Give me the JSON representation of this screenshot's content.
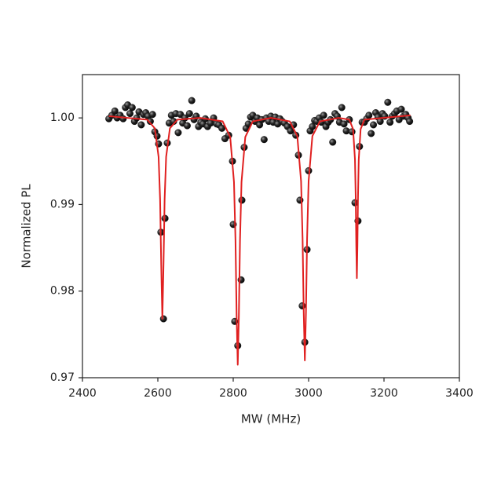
{
  "chart_data": {
    "type": "scatter",
    "x_label": "MW (MHz)",
    "y_label": "Normalized PL",
    "xlim": [
      2400,
      3400
    ],
    "xticks": [
      2400,
      2600,
      2800,
      3000,
      3200,
      3400
    ],
    "ylim": [
      0.97,
      1.005
    ],
    "yticks": [
      0.97,
      0.98,
      0.99,
      {
        "value": 1,
        "label": "1.00"
      }
    ],
    "series": [
      {
        "type": "scatter",
        "color": "#1a1a1a",
        "x": [
          2470,
          2478,
          2486,
          2492,
          2500,
          2508,
          2514,
          2520,
          2526,
          2532,
          2538,
          2544,
          2550,
          2556,
          2562,
          2568,
          2574,
          2580,
          2586,
          2592,
          2598,
          2602,
          2608,
          2615,
          2619,
          2625,
          2630,
          2636,
          2642,
          2648,
          2654,
          2660,
          2666,
          2672,
          2678,
          2684,
          2690,
          2696,
          2702,
          2708,
          2714,
          2720,
          2726,
          2732,
          2740,
          2748,
          2756,
          2762,
          2770,
          2778,
          2788,
          2798,
          2800,
          2804,
          2812,
          2821,
          2823,
          2829,
          2834,
          2840,
          2846,
          2852,
          2858,
          2864,
          2870,
          2876,
          2882,
          2888,
          2894,
          2900,
          2906,
          2912,
          2918,
          2924,
          2930,
          2936,
          2944,
          2952,
          2960,
          2966,
          2973,
          2977,
          2983,
          2990,
          2996,
          3000,
          3004,
          3010,
          3016,
          3022,
          3028,
          3034,
          3040,
          3046,
          3052,
          3058,
          3064,
          3070,
          3076,
          3082,
          3088,
          3094,
          3100,
          3108,
          3115,
          3123,
          3131,
          3135,
          3142,
          3148,
          3154,
          3160,
          3166,
          3172,
          3178,
          3184,
          3190,
          3196,
          3202,
          3210,
          3216,
          3222,
          3228,
          3234,
          3240,
          3246,
          3252,
          3258,
          3264,
          3268
        ],
        "values": [
          0.9999,
          1.0003,
          1.0008,
          1.0,
          1.0003,
          0.9999,
          1.0012,
          1.0015,
          1.0005,
          1.0012,
          0.9996,
          1.0,
          1.0007,
          0.9992,
          1.0004,
          1.0006,
          1.0002,
          0.9996,
          1.0004,
          0.9984,
          0.9979,
          0.997,
          0.9868,
          0.9768,
          0.9884,
          0.9971,
          0.9994,
          1.0003,
          0.9996,
          1.0005,
          0.9983,
          1.0004,
          0.9994,
          1.0,
          0.9991,
          1.0005,
          1.002,
          0.9998,
          1.0002,
          0.999,
          0.9995,
          0.9993,
          0.9999,
          0.999,
          0.9994,
          1.0,
          0.9993,
          0.9992,
          0.9988,
          0.9976,
          0.998,
          0.995,
          0.9877,
          0.9765,
          0.9737,
          0.9813,
          0.9905,
          0.9966,
          0.9988,
          0.9993,
          1.0001,
          1.0003,
          0.9996,
          1.0,
          0.9992,
          0.9998,
          0.9975,
          1.0,
          0.9996,
          1.0002,
          0.9995,
          1.0001,
          0.9993,
          0.9999,
          0.9996,
          0.9994,
          0.999,
          0.9985,
          0.9992,
          0.998,
          0.9957,
          0.9905,
          0.9783,
          0.9741,
          0.9848,
          0.9939,
          0.9985,
          0.999,
          0.9997,
          0.9996,
          1.0,
          0.9995,
          1.0003,
          0.999,
          0.9995,
          0.9998,
          0.9972,
          1.0005,
          1.0002,
          0.9995,
          1.0012,
          0.9993,
          0.9985,
          0.9998,
          0.9984,
          0.9902,
          0.9881,
          0.9967,
          0.9995,
          0.9995,
          0.9999,
          1.0003,
          0.9982,
          0.9992,
          1.0006,
          1.0001,
          0.9996,
          1.0005,
          1.0002,
          1.0018,
          0.9995,
          1.0002,
          1.0005,
          1.0008,
          0.9998,
          1.001,
          1.0002,
          1.0004,
          1.0,
          0.9996
        ]
      },
      {
        "type": "line",
        "color": "#e02020",
        "x": [
          2470,
          2572,
          2592,
          2602,
          2606,
          2609,
          2612,
          2615,
          2618,
          2622,
          2632,
          2652,
          2712,
          2772,
          2792,
          2802,
          2806,
          2809,
          2812,
          2815,
          2818,
          2822,
          2832,
          2852,
          2900,
          2950,
          2970,
          2980,
          2984,
          2987,
          2990,
          2993,
          2996,
          3000,
          3010,
          3030,
          3080,
          3108,
          3118,
          3123,
          3125,
          3126.5,
          3128,
          3129.5,
          3131,
          3133,
          3138,
          3148,
          3270
        ],
        "values": [
          1.0002,
          0.9998,
          0.9988,
          0.9955,
          0.9906,
          0.983,
          0.9768,
          0.983,
          0.9906,
          0.9955,
          0.9988,
          0.9998,
          1.0,
          0.9996,
          0.9978,
          0.9926,
          0.9859,
          0.9772,
          0.9715,
          0.9772,
          0.9859,
          0.9926,
          0.9978,
          0.9996,
          1.0,
          0.9996,
          0.9979,
          0.9927,
          0.9861,
          0.9776,
          0.972,
          0.9776,
          0.9861,
          0.9927,
          0.9979,
          0.9996,
          1.0,
          0.9998,
          0.9987,
          0.9952,
          0.9908,
          0.9852,
          0.9815,
          0.9852,
          0.9908,
          0.9952,
          0.9987,
          0.9998,
          1.0003
        ]
      }
    ]
  }
}
